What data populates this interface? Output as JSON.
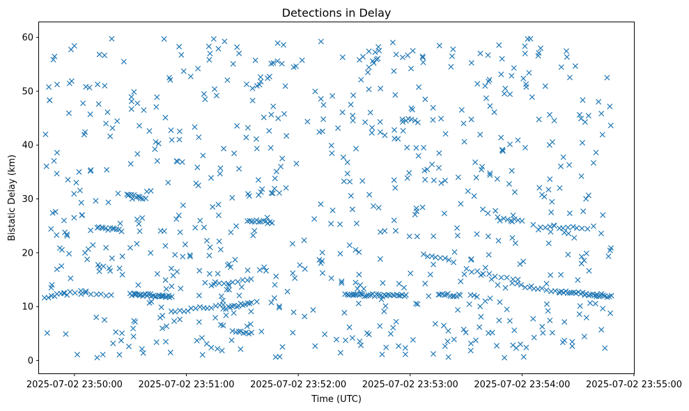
{
  "chart_data": {
    "type": "scatter",
    "title": "Detections in Delay",
    "xlabel": "Time (UTC)",
    "ylabel": "Bistatic Delay (km)",
    "marker": "x",
    "color": "#1f77b4",
    "grid": false,
    "x_ticks": [
      "2025-07-02 23:50:00",
      "2025-07-02 23:51:00",
      "2025-07-02 23:52:00",
      "2025-07-02 23:53:00",
      "2025-07-02 23:54:00",
      "2025-07-02 23:55:00"
    ],
    "xlim": [
      "2025-07-02 23:49:41",
      "2025-07-02 23:55:00"
    ],
    "y_ticks": [
      0,
      10,
      20,
      30,
      40,
      50,
      60
    ],
    "ylim": [
      -2.4,
      62.8
    ],
    "series": [
      {
        "tracks": [
          {
            "t0": "2025-07-02 23:49:44",
            "t1": "2025-07-02 23:49:56",
            "y0": 11.8,
            "y1": 12.4,
            "n": 8
          },
          {
            "t0": "2025-07-02 23:49:55",
            "t1": "2025-07-02 23:50:20",
            "y0": 12.6,
            "y1": 12.1,
            "n": 10
          },
          {
            "t0": "2025-07-02 23:50:30",
            "t1": "2025-07-02 23:50:52",
            "y0": 12.3,
            "y1": 11.9,
            "n": 28
          },
          {
            "t0": "2025-07-02 23:50:52",
            "t1": "2025-07-02 23:51:20",
            "y0": 9.0,
            "y1": 10.3,
            "n": 14
          },
          {
            "t0": "2025-07-02 23:51:15",
            "t1": "2025-07-02 23:51:35",
            "y0": 14.0,
            "y1": 15.2,
            "n": 9
          },
          {
            "t0": "2025-07-02 23:51:20",
            "t1": "2025-07-02 23:51:35",
            "y0": 9.6,
            "y1": 10.8,
            "n": 14
          },
          {
            "t0": "2025-07-02 23:51:25",
            "t1": "2025-07-02 23:51:35",
            "y0": 5.4,
            "y1": 5.0,
            "n": 8
          },
          {
            "t0": "2025-07-02 23:52:25",
            "t1": "2025-07-02 23:52:58",
            "y0": 12.2,
            "y1": 12.0,
            "n": 32
          },
          {
            "t0": "2025-07-02 23:53:15",
            "t1": "2025-07-02 23:53:27",
            "y0": 12.3,
            "y1": 12.0,
            "n": 12
          },
          {
            "t0": "2025-07-02 23:53:30",
            "t1": "2025-07-02 23:53:58",
            "y0": 16.8,
            "y1": 14.8,
            "n": 10
          },
          {
            "t0": "2025-07-02 23:53:55",
            "t1": "2025-07-02 23:54:20",
            "y0": 14.2,
            "y1": 12.7,
            "n": 12
          },
          {
            "t0": "2025-07-02 23:54:20",
            "t1": "2025-07-02 23:54:48",
            "y0": 12.8,
            "y1": 11.9,
            "n": 26
          },
          {
            "t0": "2025-07-02 23:50:12",
            "t1": "2025-07-02 23:50:25",
            "y0": 24.8,
            "y1": 24.1,
            "n": 12
          },
          {
            "t0": "2025-07-02 23:50:28",
            "t1": "2025-07-02 23:50:38",
            "y0": 31.0,
            "y1": 30.0,
            "n": 9
          },
          {
            "t0": "2025-07-02 23:51:33",
            "t1": "2025-07-02 23:51:46",
            "y0": 26.0,
            "y1": 25.6,
            "n": 12
          },
          {
            "t0": "2025-07-02 23:53:07",
            "t1": "2025-07-02 23:53:23",
            "y0": 19.6,
            "y1": 18.4,
            "n": 8
          },
          {
            "t0": "2025-07-02 23:52:56",
            "t1": "2025-07-02 23:53:04",
            "y0": 44.8,
            "y1": 44.4,
            "n": 6
          },
          {
            "t0": "2025-07-02 23:53:48",
            "t1": "2025-07-02 23:54:00",
            "y0": 26.2,
            "y1": 26.1,
            "n": 7
          },
          {
            "t0": "2025-07-02 23:54:10",
            "t1": "2025-07-02 23:54:32",
            "y0": 24.9,
            "y1": 24.5,
            "n": 10
          }
        ],
        "scattered": {
          "t0": "2025-07-02 23:49:44",
          "t1": "2025-07-02 23:54:48",
          "y_min": 0.5,
          "y_max": 59.8,
          "n": 720
        }
      }
    ]
  }
}
